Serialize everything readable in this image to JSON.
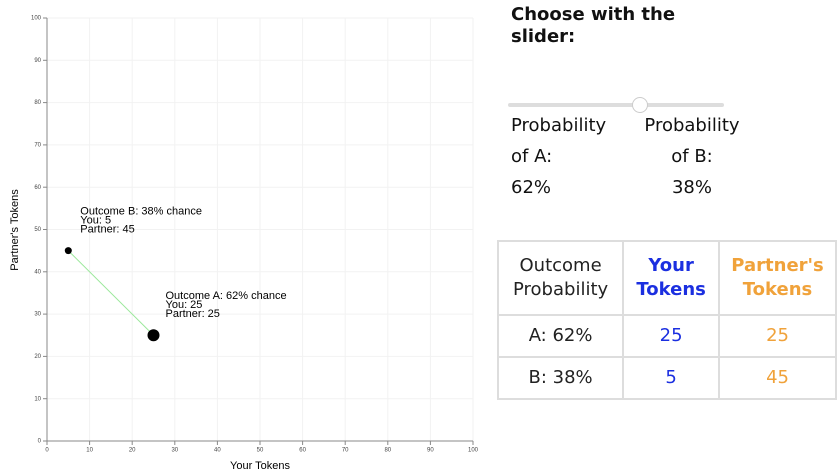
{
  "chart_data": {
    "type": "scatter",
    "x_label": "Your Tokens",
    "y_label": "Partner's Tokens",
    "xlim": [
      0,
      100
    ],
    "ylim": [
      0,
      100
    ],
    "xticks": [
      0,
      10,
      20,
      30,
      40,
      50,
      60,
      70,
      80,
      90,
      100
    ],
    "yticks": [
      0,
      10,
      20,
      30,
      40,
      50,
      60,
      70,
      80,
      90,
      100
    ],
    "grid": true,
    "x": [
      25,
      5
    ],
    "values": [
      25,
      45
    ],
    "color": "#000000",
    "line_color": "#9be89b",
    "annotations": [
      [
        "Outcome A: 62% chance",
        "You: 25",
        "Partner: 25"
      ],
      [
        "Outcome B: 38% chance",
        "You: 5",
        "Partner: 45"
      ]
    ]
  },
  "panel": {
    "title": "Choose with the slider:",
    "prob_a": [
      "Probability",
      "of A:",
      "62%"
    ],
    "prob_b": [
      "Probability",
      "of B:",
      "38%"
    ]
  },
  "table": {
    "header": [
      "Outcome Probability",
      "Your Tokens",
      "Partner's Tokens"
    ],
    "rows": [
      [
        "A: 62%",
        "25",
        "25"
      ],
      [
        "B: 38%",
        "5",
        "45"
      ]
    ]
  }
}
